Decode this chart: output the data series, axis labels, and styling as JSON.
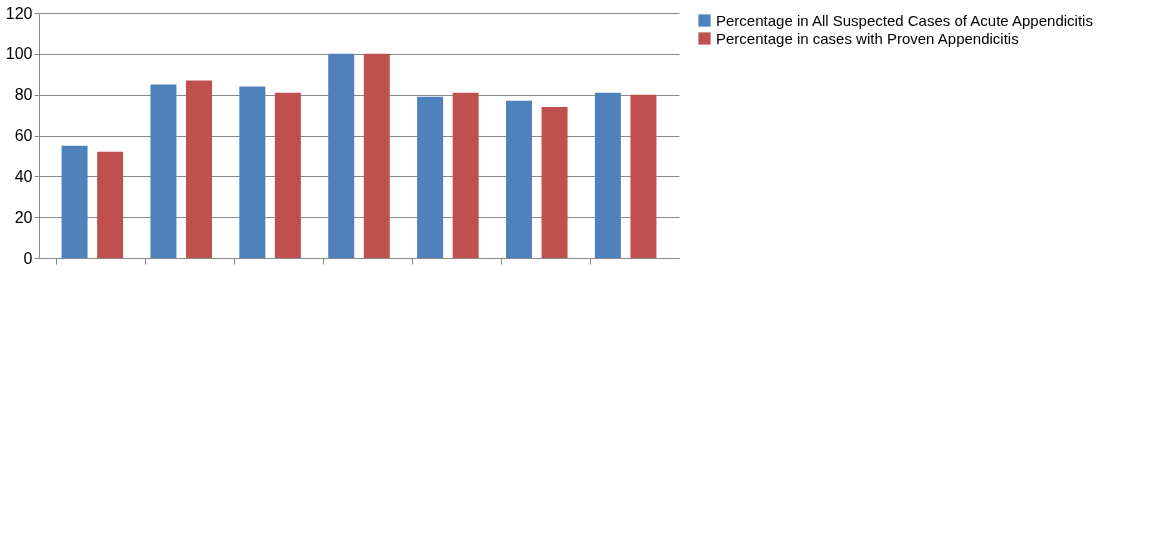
{
  "chart_data": {
    "type": "bar",
    "categories": [
      null,
      null,
      null,
      null,
      null,
      null,
      null
    ],
    "series": [
      {
        "name": "Percentage in All Suspected Cases of Acute Appendicitis",
        "color": "#4f81bd",
        "values": [
          55,
          85,
          84,
          100,
          79,
          77,
          81
        ]
      },
      {
        "name": "Percentage in cases with Proven Appendicitis",
        "color": "#c0504d",
        "values": [
          52,
          87,
          81,
          100,
          81,
          74,
          80
        ]
      }
    ],
    "ylim": [
      0,
      120
    ],
    "yticks": [
      0,
      20,
      40,
      60,
      80,
      100,
      120
    ],
    "grid": "y",
    "legend": "right",
    "tick_labels": "y"
  }
}
